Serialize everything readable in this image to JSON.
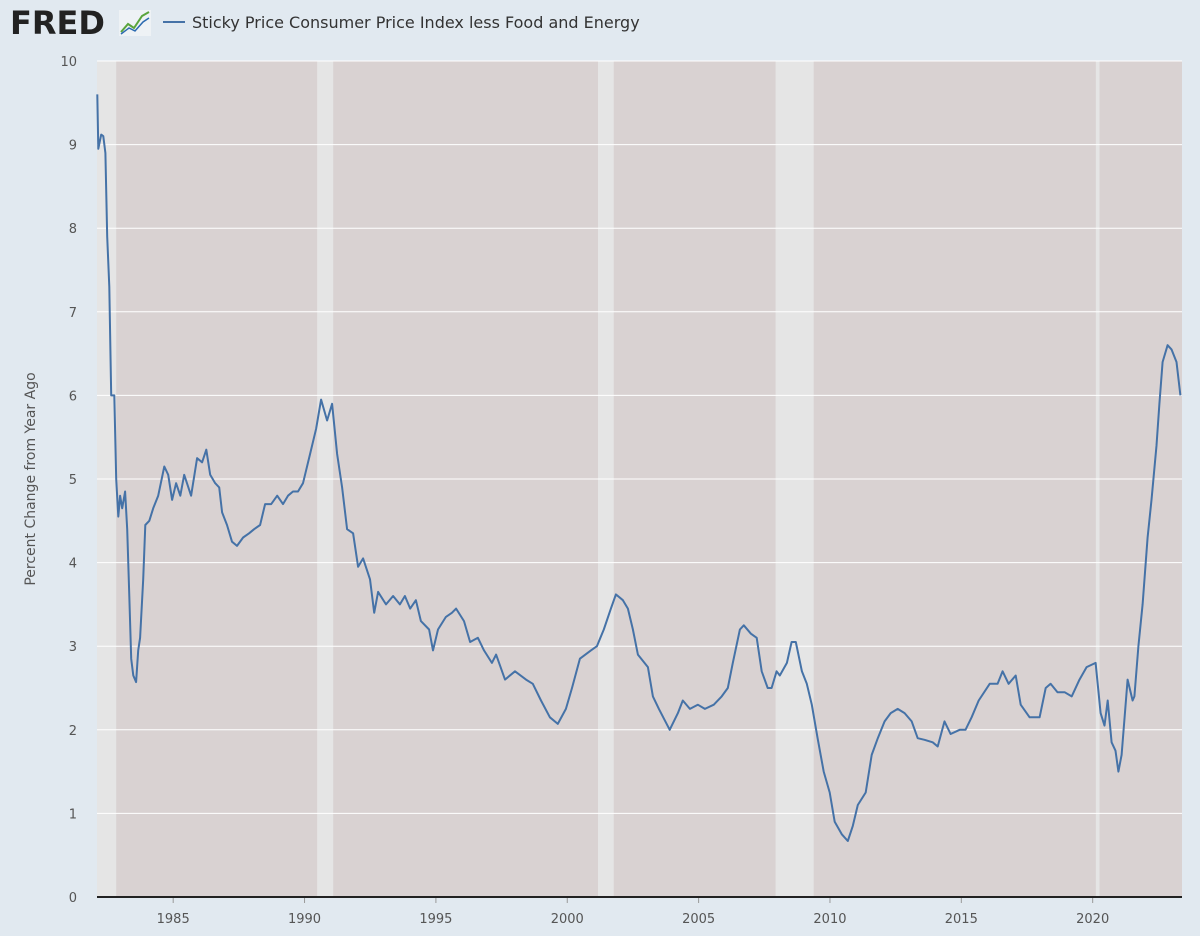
{
  "logo": "FRED",
  "chart_data": {
    "type": "line",
    "ylabel": "Percent Change from Year Ago",
    "xlim": [
      1982.1,
      2023.4
    ],
    "xticks": [
      1985,
      1990,
      1995,
      2000,
      2005,
      2010,
      2015,
      2020
    ],
    "ylim": [
      0,
      10
    ],
    "yticks": [
      0,
      1,
      2,
      3,
      4,
      5,
      6,
      7,
      8,
      9,
      10
    ],
    "grid": true,
    "recessions": [
      [
        1981.5,
        1982.83
      ],
      [
        1990.48,
        1991.09
      ],
      [
        2001.17,
        2001.77
      ],
      [
        2007.93,
        2009.38
      ],
      [
        2020.12,
        2020.26
      ]
    ],
    "x": [
      1982.11,
      1982.15,
      1982.26,
      1982.34,
      1982.42,
      1982.49,
      1982.57,
      1982.64,
      1982.76,
      1982.83,
      1982.91,
      1982.98,
      1983.06,
      1983.17,
      1983.25,
      1983.33,
      1983.4,
      1983.48,
      1983.59,
      1983.67,
      1983.74,
      1983.86,
      1983.94,
      1984.09,
      1984.24,
      1984.43,
      1984.66,
      1984.81,
      1984.96,
      1985.11,
      1985.27,
      1985.42,
      1985.68,
      1985.91,
      1986.1,
      1986.26,
      1986.41,
      1986.6,
      1986.75,
      1986.86,
      1987.05,
      1987.24,
      1987.43,
      1987.66,
      1987.89,
      1988.08,
      1988.31,
      1988.5,
      1988.73,
      1988.96,
      1989.18,
      1989.37,
      1989.56,
      1989.75,
      1989.94,
      1990.21,
      1990.44,
      1990.63,
      1990.86,
      1991.05,
      1991.24,
      1991.43,
      1991.62,
      1991.85,
      1992.04,
      1992.23,
      1992.49,
      1992.65,
      1992.8,
      1993.1,
      1993.37,
      1993.63,
      1993.82,
      1994.02,
      1994.24,
      1994.43,
      1994.74,
      1994.89,
      1995.08,
      1995.38,
      1995.61,
      1995.77,
      1996.07,
      1996.3,
      1996.6,
      1996.83,
      1997.13,
      1997.29,
      1997.63,
      1998.01,
      1998.43,
      1998.69,
      1999.0,
      1999.34,
      1999.64,
      1999.95,
      2000.18,
      2000.48,
      2000.9,
      2001.13,
      2001.39,
      2001.66,
      2001.85,
      2002.12,
      2002.31,
      2002.5,
      2002.69,
      2003.07,
      2003.26,
      2003.49,
      2003.9,
      2004.21,
      2004.4,
      2004.67,
      2004.97,
      2005.24,
      2005.58,
      2005.88,
      2006.11,
      2006.3,
      2006.57,
      2006.72,
      2006.99,
      2007.21,
      2007.4,
      2007.63,
      2007.78,
      2007.97,
      2008.09,
      2008.36,
      2008.54,
      2008.7,
      2008.93,
      2009.12,
      2009.31,
      2009.53,
      2009.76,
      2009.99,
      2010.18,
      2010.45,
      2010.68,
      2010.87,
      2011.06,
      2011.36,
      2011.59,
      2011.82,
      2012.08,
      2012.31,
      2012.58,
      2012.84,
      2013.11,
      2013.34,
      2013.6,
      2013.91,
      2014.1,
      2014.36,
      2014.59,
      2014.94,
      2015.16,
      2015.39,
      2015.66,
      2016.08,
      2016.38,
      2016.57,
      2016.8,
      2017.07,
      2017.26,
      2017.6,
      2017.98,
      2018.21,
      2018.4,
      2018.66,
      2018.93,
      2019.2,
      2019.5,
      2019.77,
      2020.11,
      2020.3,
      2020.45,
      2020.57,
      2020.72,
      2020.87,
      2020.98,
      2021.1,
      2021.33,
      2021.52,
      2021.59,
      2021.74,
      2021.9,
      2022.09,
      2022.24,
      2022.43,
      2022.54,
      2022.66,
      2022.85,
      2023.0,
      2023.19,
      2023.34
    ],
    "series": [
      {
        "name": "Sticky Price Consumer Price Index less Food and Energy",
        "color": "#4572a7",
        "values": [
          9.6,
          8.95,
          9.12,
          9.1,
          8.9,
          7.9,
          7.3,
          6.0,
          6.0,
          5.0,
          4.55,
          4.8,
          4.65,
          4.85,
          4.4,
          3.6,
          2.85,
          2.65,
          2.57,
          2.95,
          3.1,
          3.8,
          4.45,
          4.5,
          4.65,
          4.8,
          5.15,
          5.05,
          4.75,
          4.95,
          4.8,
          5.05,
          4.8,
          5.25,
          5.2,
          5.35,
          5.05,
          4.95,
          4.9,
          4.6,
          4.45,
          4.25,
          4.2,
          4.3,
          4.35,
          4.4,
          4.45,
          4.7,
          4.7,
          4.8,
          4.7,
          4.8,
          4.85,
          4.85,
          4.95,
          5.3,
          5.6,
          5.95,
          5.7,
          5.9,
          5.3,
          4.9,
          4.4,
          4.35,
          3.95,
          4.05,
          3.8,
          3.4,
          3.65,
          3.5,
          3.6,
          3.5,
          3.6,
          3.45,
          3.55,
          3.3,
          3.2,
          2.95,
          3.2,
          3.35,
          3.4,
          3.45,
          3.3,
          3.05,
          3.1,
          2.95,
          2.8,
          2.9,
          2.6,
          2.7,
          2.6,
          2.55,
          2.35,
          2.15,
          2.07,
          2.25,
          2.5,
          2.85,
          2.95,
          3.0,
          3.2,
          3.45,
          3.62,
          3.55,
          3.45,
          3.2,
          2.9,
          2.75,
          2.4,
          2.25,
          2.0,
          2.2,
          2.35,
          2.25,
          2.3,
          2.25,
          2.3,
          2.4,
          2.5,
          2.8,
          3.2,
          3.25,
          3.15,
          3.1,
          2.7,
          2.5,
          2.5,
          2.7,
          2.65,
          2.8,
          3.05,
          3.05,
          2.7,
          2.55,
          2.3,
          1.9,
          1.5,
          1.25,
          0.9,
          0.75,
          0.67,
          0.85,
          1.1,
          1.25,
          1.7,
          1.9,
          2.1,
          2.2,
          2.25,
          2.2,
          2.1,
          1.9,
          1.88,
          1.85,
          1.8,
          2.1,
          1.95,
          2.0,
          2.0,
          2.15,
          2.35,
          2.55,
          2.55,
          2.7,
          2.55,
          2.65,
          2.3,
          2.15,
          2.15,
          2.5,
          2.55,
          2.45,
          2.45,
          2.4,
          2.6,
          2.75,
          2.8,
          2.2,
          2.05,
          2.35,
          1.85,
          1.75,
          1.5,
          1.7,
          2.6,
          2.35,
          2.4,
          3.0,
          3.5,
          4.3,
          4.75,
          5.4,
          5.9,
          6.4,
          6.6,
          6.55,
          6.4,
          6.0
        ]
      }
    ]
  }
}
